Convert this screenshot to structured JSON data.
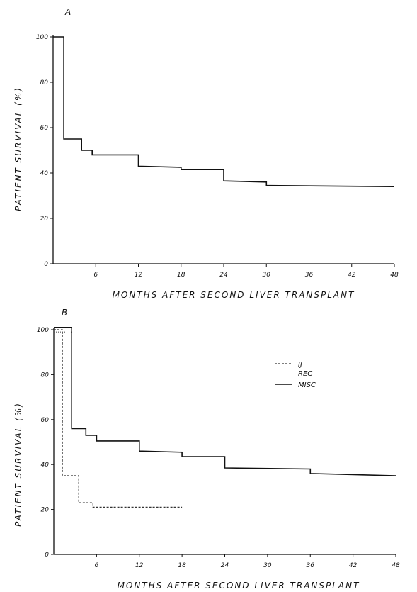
{
  "chart_data": [
    {
      "type": "line",
      "panel_label": "A",
      "xlabel": "MONTHS AFTER SECOND LIVER TRANSPLANT",
      "ylabel": "PATIENT SURVIVAL (%)",
      "xlim": [
        0,
        48
      ],
      "ylim": [
        0,
        100
      ],
      "x_ticks": [
        "6",
        "12",
        "18",
        "24",
        "30",
        "36",
        "42",
        "48"
      ],
      "y_ticks": [
        "0",
        "20",
        "40",
        "60",
        "80",
        "100"
      ],
      "series": [
        {
          "style": "solid",
          "color": "#111111",
          "points": [
            [
              0,
              100
            ],
            [
              1.5,
              100
            ],
            [
              1.5,
              55
            ],
            [
              4,
              55
            ],
            [
              4,
              50
            ],
            [
              5.5,
              50
            ],
            [
              5.5,
              48
            ],
            [
              12,
              48
            ],
            [
              12,
              43
            ],
            [
              18,
              42.5
            ],
            [
              18,
              41.5
            ],
            [
              24,
              41.5
            ],
            [
              24,
              36.5
            ],
            [
              30,
              36
            ],
            [
              30,
              34.5
            ],
            [
              48,
              34
            ]
          ]
        }
      ]
    },
    {
      "type": "line",
      "panel_label": "B",
      "xlabel": "MONTHS AFTER SECOND LIVER TRANSPLANT",
      "ylabel": "PATIENT SURVIVAL (%)",
      "xlim": [
        0,
        48
      ],
      "ylim": [
        0,
        100
      ],
      "x_ticks": [
        "6",
        "12",
        "18",
        "24",
        "30",
        "36",
        "42",
        "48"
      ],
      "y_ticks": [
        "0",
        "20",
        "40",
        "60",
        "80",
        "100"
      ],
      "legend": {
        "position": "right",
        "entries": [
          "IJ",
          "REC",
          "MISC"
        ]
      },
      "series": [
        {
          "name": "IJ",
          "style": "dashed",
          "color": "#333333",
          "points": [
            [
              0,
              100
            ],
            [
              1.2,
              100
            ],
            [
              1.2,
              35
            ],
            [
              3.5,
              35
            ],
            [
              3.5,
              23
            ],
            [
              5.5,
              23
            ],
            [
              5.5,
              21
            ],
            [
              18,
              21
            ]
          ]
        },
        {
          "name": "REC",
          "style": "dotted",
          "color": "#555555",
          "points": [
            [
              0,
              99
            ],
            [
              2.5,
              99
            ],
            [
              2.5,
              56
            ]
          ]
        },
        {
          "name": "MISC",
          "style": "solid",
          "color": "#111111",
          "points": [
            [
              0,
              101
            ],
            [
              2.5,
              101
            ],
            [
              2.5,
              56
            ],
            [
              4.5,
              56
            ],
            [
              4.5,
              53
            ],
            [
              6,
              53
            ],
            [
              6,
              50.5
            ],
            [
              12,
              50.5
            ],
            [
              12,
              46
            ],
            [
              18,
              45.5
            ],
            [
              18,
              43.5
            ],
            [
              24,
              43.5
            ],
            [
              24,
              38.5
            ],
            [
              36,
              38
            ],
            [
              36,
              36
            ],
            [
              48,
              35
            ]
          ]
        }
      ]
    }
  ]
}
